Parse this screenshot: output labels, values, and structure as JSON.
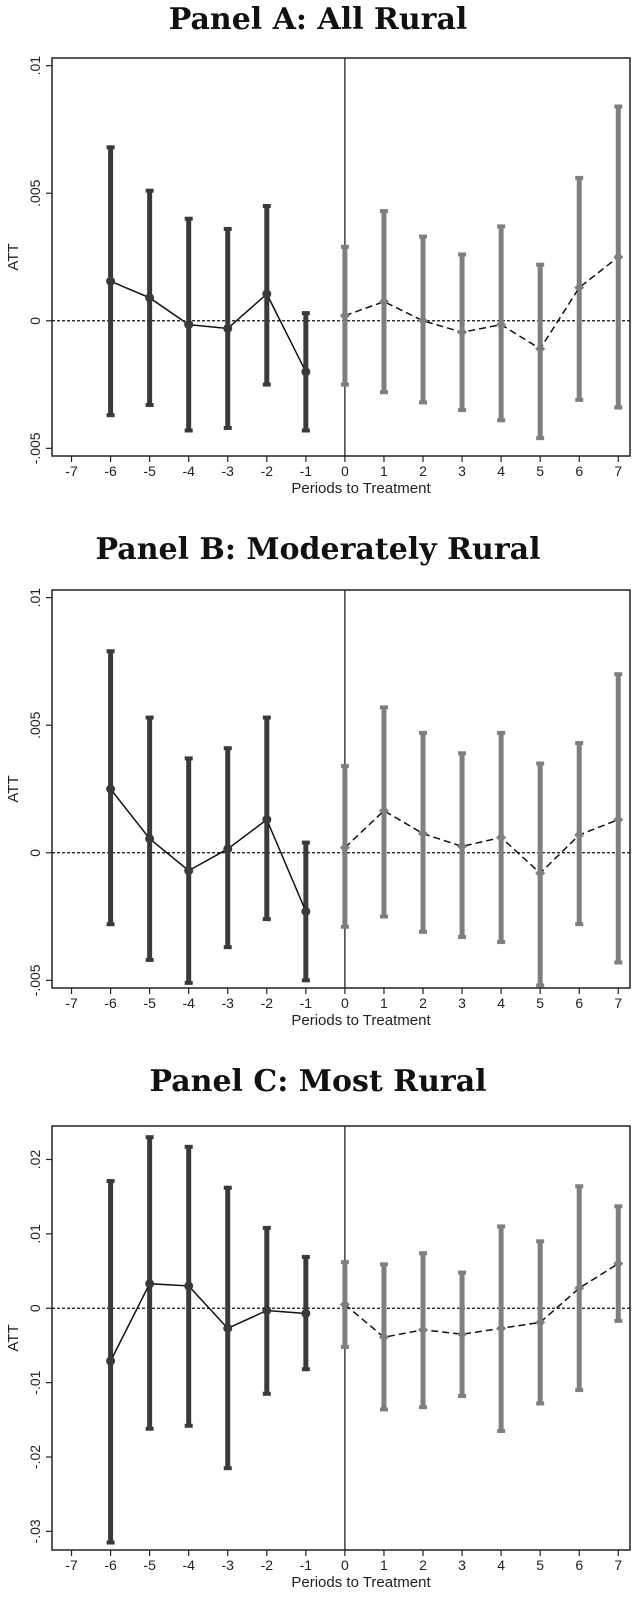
{
  "chart_data": [
    {
      "type": "event-study",
      "title": "Panel A: All Rural",
      "xlabel": "Periods to Treatment",
      "ylabel": "ATT",
      "xlim": [
        -7.5,
        7.3
      ],
      "ylim": [
        -0.0053,
        0.0103
      ],
      "xticks": [
        -7,
        -6,
        -5,
        -4,
        -3,
        -2,
        -1,
        0,
        1,
        2,
        3,
        4,
        5,
        6,
        7
      ],
      "yticks": [
        -0.005,
        0,
        0.005,
        0.01
      ],
      "ytick_labels": [
        "-.005",
        "0",
        ".005",
        ".01"
      ],
      "treatment_line_x": 0,
      "series": [
        {
          "style": "pre",
          "color": "#3a3a3a",
          "x": [
            -6,
            -5,
            -4,
            -3,
            -2,
            -1
          ],
          "y": [
            0.00155,
            0.0009,
            -0.00015,
            -0.0003,
            0.00105,
            -0.002
          ],
          "lo": [
            -0.0037,
            -0.0033,
            -0.0043,
            -0.0042,
            -0.0025,
            -0.0043
          ],
          "hi": [
            0.0068,
            0.0051,
            0.004,
            0.0036,
            0.0045,
            0.0003
          ]
        },
        {
          "style": "post",
          "color": "#7f7f7f",
          "x": [
            0,
            1,
            2,
            3,
            4,
            5,
            6,
            7
          ],
          "y": [
            0.0002,
            0.00075,
            0.0,
            -0.00045,
            -0.00015,
            -0.0011,
            0.0013,
            0.0025
          ],
          "lo": [
            -0.0025,
            -0.0028,
            -0.0032,
            -0.0035,
            -0.0039,
            -0.0046,
            -0.0031,
            -0.0034
          ],
          "hi": [
            0.0029,
            0.0043,
            0.0033,
            0.0026,
            0.0037,
            0.0022,
            0.0056,
            0.0084
          ]
        }
      ]
    },
    {
      "type": "event-study",
      "title": "Panel B: Moderately Rural",
      "xlabel": "Periods to Treatment",
      "ylabel": "ATT",
      "xlim": [
        -7.5,
        7.3
      ],
      "ylim": [
        -0.0053,
        0.0103
      ],
      "xticks": [
        -7,
        -6,
        -5,
        -4,
        -3,
        -2,
        -1,
        0,
        1,
        2,
        3,
        4,
        5,
        6,
        7
      ],
      "yticks": [
        -0.005,
        0,
        0.005,
        0.01
      ],
      "ytick_labels": [
        "-.005",
        "0",
        ".005",
        ".01"
      ],
      "treatment_line_x": 0,
      "series": [
        {
          "style": "pre",
          "color": "#3a3a3a",
          "x": [
            -6,
            -5,
            -4,
            -3,
            -2,
            -1
          ],
          "y": [
            0.0025,
            0.00055,
            -0.0007,
            0.00015,
            0.0013,
            -0.0023
          ],
          "lo": [
            -0.0028,
            -0.0042,
            -0.0051,
            -0.0037,
            -0.0026,
            -0.005
          ],
          "hi": [
            0.0079,
            0.0053,
            0.0037,
            0.0041,
            0.0053,
            0.0004
          ]
        },
        {
          "style": "post",
          "color": "#7f7f7f",
          "x": [
            0,
            1,
            2,
            3,
            4,
            5,
            6,
            7
          ],
          "y": [
            0.0002,
            0.00165,
            0.00075,
            0.00025,
            0.0006,
            -0.0008,
            0.0007,
            0.0013
          ],
          "lo": [
            -0.0029,
            -0.0025,
            -0.0031,
            -0.0033,
            -0.0035,
            -0.0052,
            -0.0028,
            -0.0043
          ],
          "hi": [
            0.0034,
            0.0057,
            0.0047,
            0.0039,
            0.0047,
            0.0035,
            0.0043,
            0.007
          ]
        }
      ]
    },
    {
      "type": "event-study",
      "title": "Panel C: Most Rural",
      "xlabel": "Periods to Treatment",
      "ylabel": "ATT",
      "xlim": [
        -7.5,
        7.3
      ],
      "ylim": [
        -0.0325,
        0.0245
      ],
      "xticks": [
        -7,
        -6,
        -5,
        -4,
        -3,
        -2,
        -1,
        0,
        1,
        2,
        3,
        4,
        5,
        6,
        7
      ],
      "yticks": [
        -0.03,
        -0.02,
        -0.01,
        0,
        0.01,
        0.02
      ],
      "ytick_labels": [
        "-.03",
        "-.02",
        "-.01",
        "0",
        ".01",
        ".02"
      ],
      "treatment_line_x": 0,
      "series": [
        {
          "style": "pre",
          "color": "#3a3a3a",
          "x": [
            -6,
            -5,
            -4,
            -3,
            -2,
            -1
          ],
          "y": [
            -0.0071,
            0.0033,
            0.003,
            -0.0027,
            -0.0003,
            -0.0007
          ],
          "lo": [
            -0.0315,
            -0.0162,
            -0.0158,
            -0.0215,
            -0.0115,
            -0.0082
          ],
          "hi": [
            0.0171,
            0.023,
            0.0217,
            0.0162,
            0.0108,
            0.0069
          ]
        },
        {
          "style": "post",
          "color": "#7f7f7f",
          "x": [
            0,
            1,
            2,
            3,
            4,
            5,
            6,
            7
          ],
          "y": [
            0.0005,
            -0.0039,
            -0.0029,
            -0.0035,
            -0.0027,
            -0.0019,
            0.0027,
            0.006
          ],
          "lo": [
            -0.0052,
            -0.0136,
            -0.0133,
            -0.0118,
            -0.0165,
            -0.0128,
            -0.011,
            -0.0017
          ],
          "hi": [
            0.0062,
            0.0059,
            0.0074,
            0.0048,
            0.011,
            0.009,
            0.0164,
            0.0137
          ]
        }
      ]
    }
  ]
}
